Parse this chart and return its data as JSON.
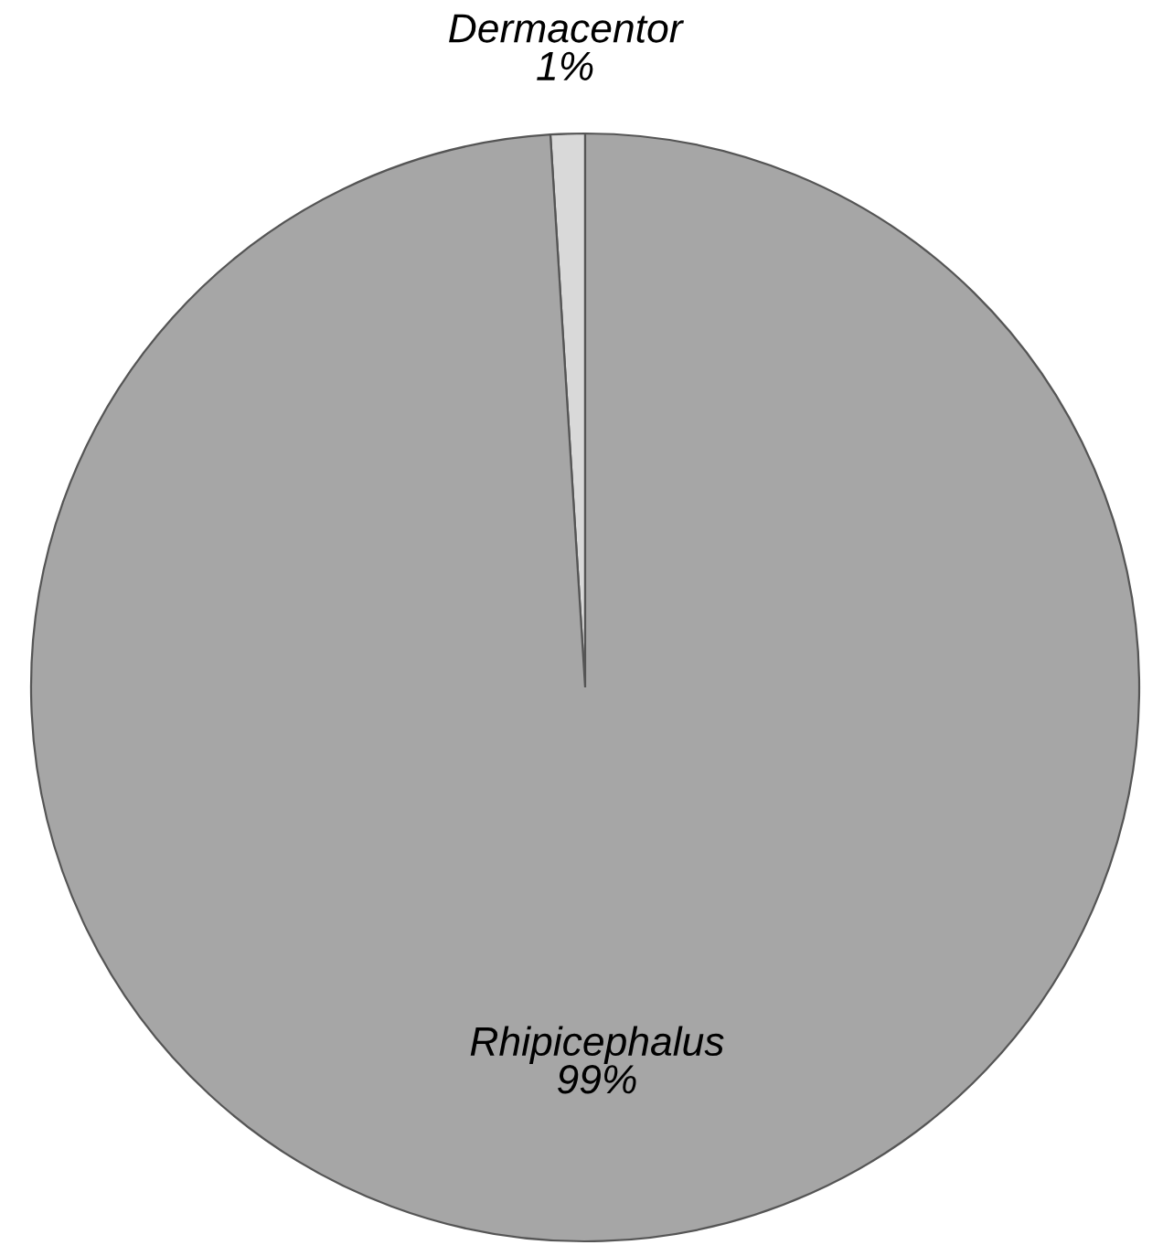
{
  "chart_data": {
    "type": "pie",
    "categories": [
      "Dermacentor",
      "Rhipicephalus"
    ],
    "values": [
      1,
      99
    ],
    "colors": [
      "#d9d9d9",
      "#a6a6a6"
    ],
    "value_labels": [
      "1%",
      "99%"
    ]
  }
}
